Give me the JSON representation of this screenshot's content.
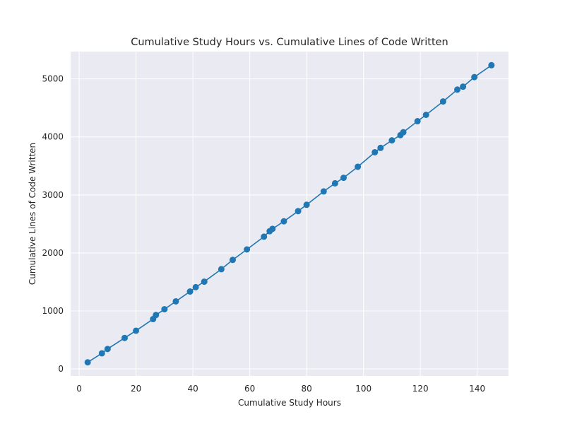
{
  "chart_data": {
    "type": "line",
    "title": "Cumulative Study Hours vs. Cumulative Lines of Code Written",
    "xlabel": "Cumulative Study Hours",
    "ylabel": "Cumulative Lines of Code Written",
    "xlim": [
      -3,
      151
    ],
    "ylim": [
      -120,
      5470
    ],
    "xticks": [
      0,
      20,
      40,
      60,
      80,
      100,
      120,
      140
    ],
    "yticks": [
      0,
      1000,
      2000,
      3000,
      4000,
      5000
    ],
    "grid": true,
    "markers": true,
    "colors": {
      "series": "#1f77b4",
      "plot_background": "#eaeaf2",
      "grid": "#ffffff"
    },
    "series": [
      {
        "x": [
          3,
          8,
          10,
          16,
          20,
          26,
          27,
          30,
          34,
          39,
          41,
          44,
          50,
          54,
          59,
          65,
          67,
          68,
          72,
          77,
          80,
          86,
          90,
          93,
          98,
          104,
          106,
          110,
          113,
          114,
          119,
          122,
          128,
          133,
          135,
          139,
          145
        ],
        "y": [
          115,
          270,
          345,
          535,
          660,
          860,
          930,
          1030,
          1165,
          1335,
          1410,
          1505,
          1720,
          1880,
          2060,
          2280,
          2375,
          2415,
          2545,
          2720,
          2830,
          3060,
          3200,
          3295,
          3485,
          3735,
          3810,
          3940,
          4030,
          4080,
          4270,
          4380,
          4610,
          4815,
          4865,
          5030,
          5235
        ]
      }
    ]
  }
}
